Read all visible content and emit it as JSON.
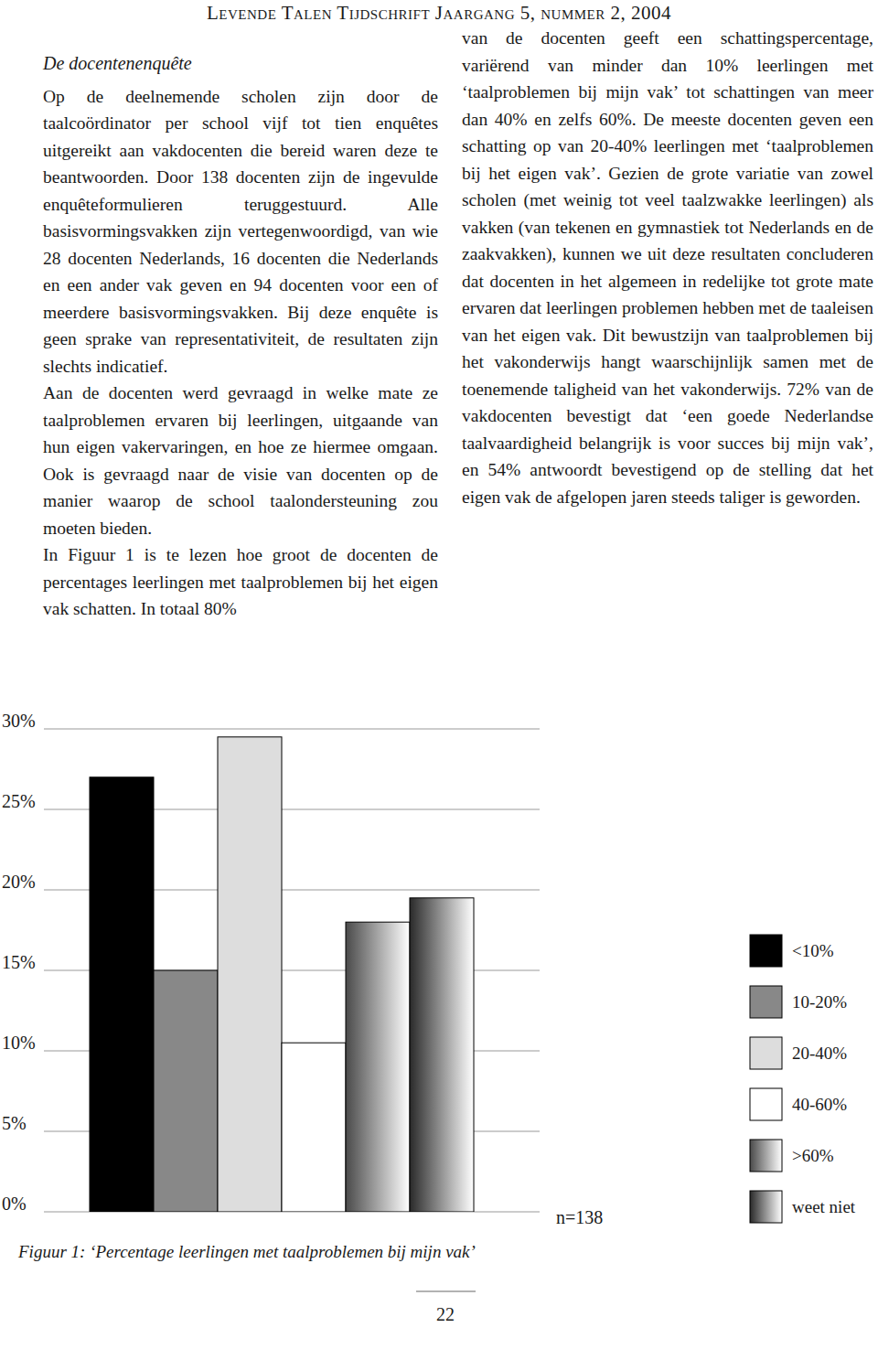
{
  "header": {
    "journal": "Levende Talen Tijdschrift",
    "issue": "Jaargang 5, nummer 2, 2004"
  },
  "section_title": "De docentenenquête",
  "left_column": [
    "Op de deelnemende scholen zijn door de taalcoördinator per school vijf tot tien enquêtes uitgereikt aan vakdocenten die bereid waren deze te beantwoorden. Door 138 docenten zijn de ingevulde enquêteformulieren teruggestuurd. Alle basisvormingsvakken zijn vertegenwoordigd, van wie 28 docenten Nederlands, 16 docenten die Nederlands en een ander vak geven en 94 docenten voor een of meerdere basisvormingsvakken. Bij deze enquête is geen sprake van representativiteit, de resultaten zijn slechts indicatief.",
    "Aan de docenten werd gevraagd in welke mate ze taalproblemen ervaren bij leerlingen, uitgaande van hun eigen vakervaringen, en hoe ze hiermee omgaan. Ook is gevraagd naar de visie van docenten op de manier waarop de school taalondersteuning zou moeten bieden.",
    "In Figuur 1 is te lezen hoe groot de docenten de percentages leerlingen met taalproblemen bij het eigen vak schatten. In totaal 80%"
  ],
  "right_column": [
    "van de docenten geeft een schattingspercentage, variërend van minder dan 10% leerlingen met ‘taalproblemen bij mijn vak’ tot schattingen van meer dan 40% en zelfs 60%. De meeste docenten geven een schatting op van 20-40% leerlingen met ‘taalproblemen bij het eigen vak’. Gezien de grote variatie van zowel scholen (met weinig tot veel taalzwakke leerlingen) als vakken (van tekenen en gymnastiek tot Nederlands en de zaakvakken), kunnen we uit deze resultaten concluderen dat docenten in het algemeen in redelijke tot grote mate ervaren dat leerlingen problemen hebben met de taaleisen van het eigen vak. Dit bewustzijn van taalproblemen bij het vakonderwijs hangt waarschijnlijk samen met de toenemende taligheid van het vakonderwijs. 72% van de vakdocenten bevestigt dat ‘een goede Nederlandse taalvaardigheid belangrijk is voor succes bij mijn vak’, en 54% antwoordt bevestigend op de stelling dat het eigen vak de afgelopen jaren steeds taliger is geworden."
  ],
  "chart_data": {
    "type": "bar",
    "title": "Figuur 1: ‘Percentage leerlingen met taalproblemen bij mijn vak’",
    "categories": [
      "<10%",
      "10-20%",
      "20-40%",
      "40-60%",
      ">60%",
      "weet niet"
    ],
    "values": [
      27,
      15,
      29.5,
      10.5,
      18,
      19.5
    ],
    "colors": [
      "#000000",
      "#888888",
      "#dddddd",
      "#ffffff",
      "#4a4a4a",
      "#2a2a2a"
    ],
    "ylim": [
      0,
      30
    ],
    "yticks": [
      {
        "value": 0,
        "label": "0%"
      },
      {
        "value": 5,
        "label": "5%"
      },
      {
        "value": 10,
        "label": "10%"
      },
      {
        "value": 15,
        "label": "15%"
      },
      {
        "value": 20,
        "label": "20%"
      },
      {
        "value": 25,
        "label": "25%"
      },
      {
        "value": 30,
        "label": "30%"
      }
    ],
    "grid": true,
    "legend": "right",
    "annotations": [
      "n=138"
    ]
  },
  "page_number": "22"
}
